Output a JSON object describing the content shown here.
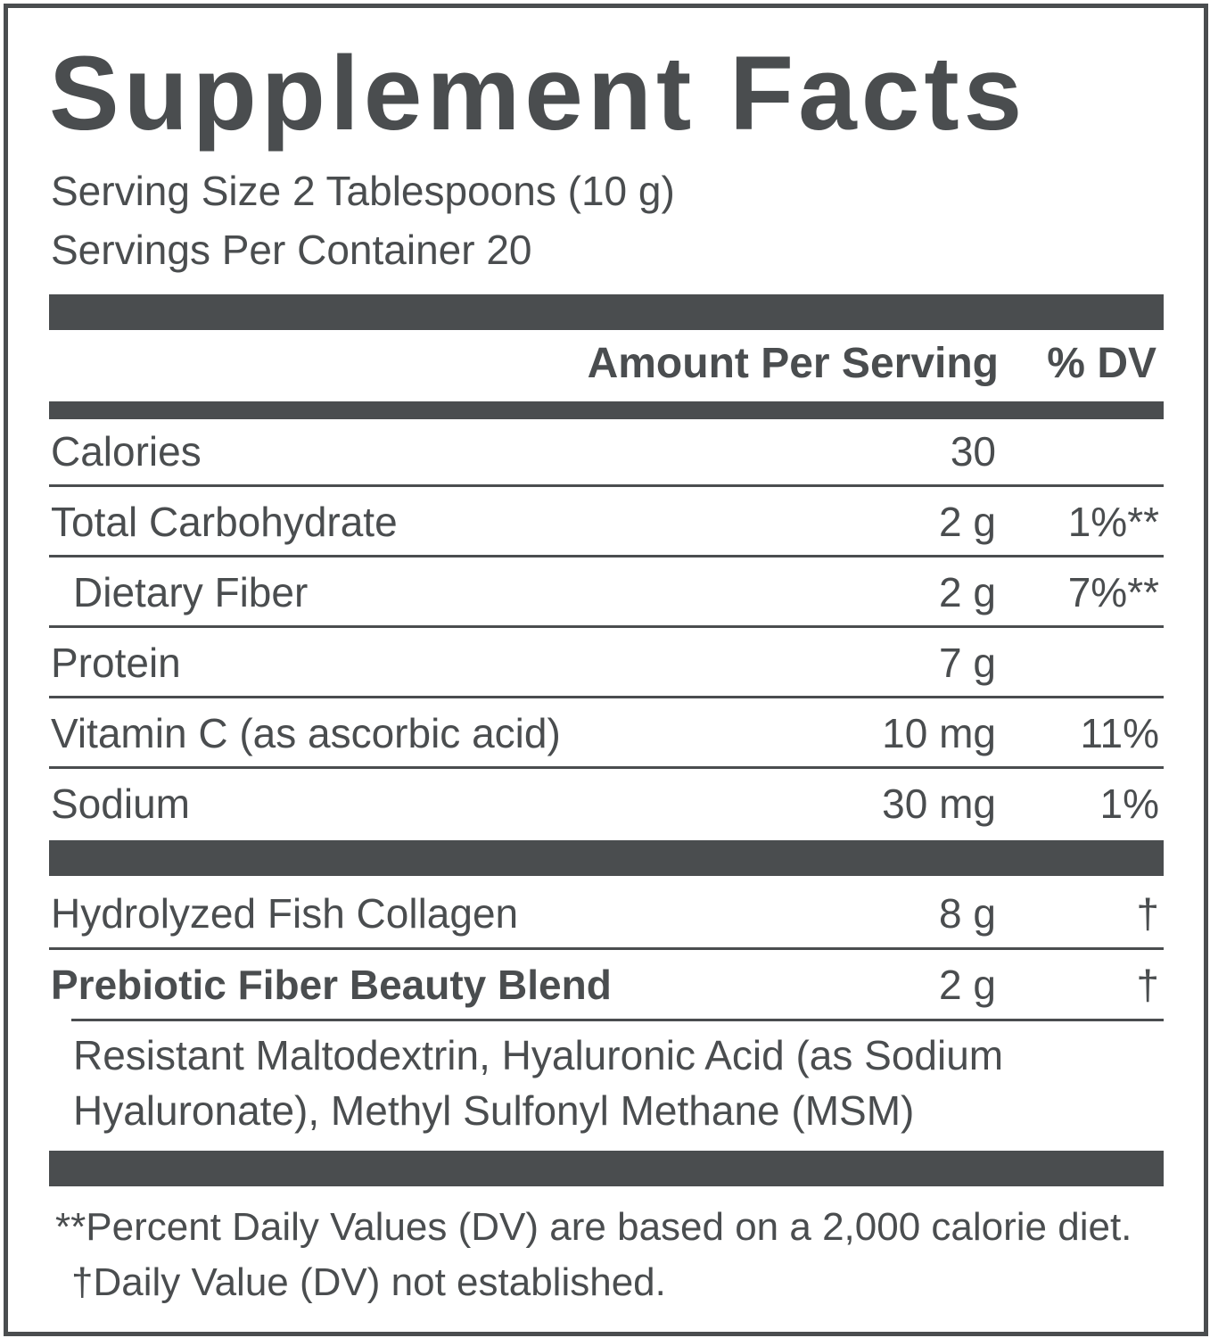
{
  "title": "Supplement Facts",
  "serving_size": "Serving Size 2 Tablespoons (10 g)",
  "servings_per_container": "Servings Per Container 20",
  "header": {
    "amount": "Amount Per Serving",
    "dv": "% DV"
  },
  "nutrients": [
    {
      "name": "Calories",
      "amount": "30"
    },
    {
      "name": "Total Carbohydrate",
      "amount": "2 g",
      "dv": "1%**"
    },
    {
      "name": "Dietary Fiber",
      "amount": "2 g",
      "dv": "7%**",
      "indent": true
    },
    {
      "name": "Protein",
      "amount": "7 g"
    },
    {
      "name": "Vitamin C (as ascorbic acid)",
      "amount": "10 mg",
      "dv": "11%"
    },
    {
      "name": "Sodium",
      "amount": "30 mg",
      "dv": "1%"
    }
  ],
  "ingredients": [
    {
      "name": "Hydrolyzed Fish Collagen",
      "amount": "8 g",
      "dv": "†"
    },
    {
      "name": "Prebiotic Fiber Beauty Blend",
      "amount": "2 g",
      "dv": "†",
      "bold": true
    }
  ],
  "blend_contents": [
    "Resistant Maltodextrin, Hyaluronic Acid (as Sodium",
    "Hyaluronate), Methyl Sulfonyl Methane (MSM)"
  ],
  "footnotes": [
    "**Percent Daily Values (DV) are based on a 2,000 calorie diet.",
    "†Daily Value (DV) not established."
  ]
}
